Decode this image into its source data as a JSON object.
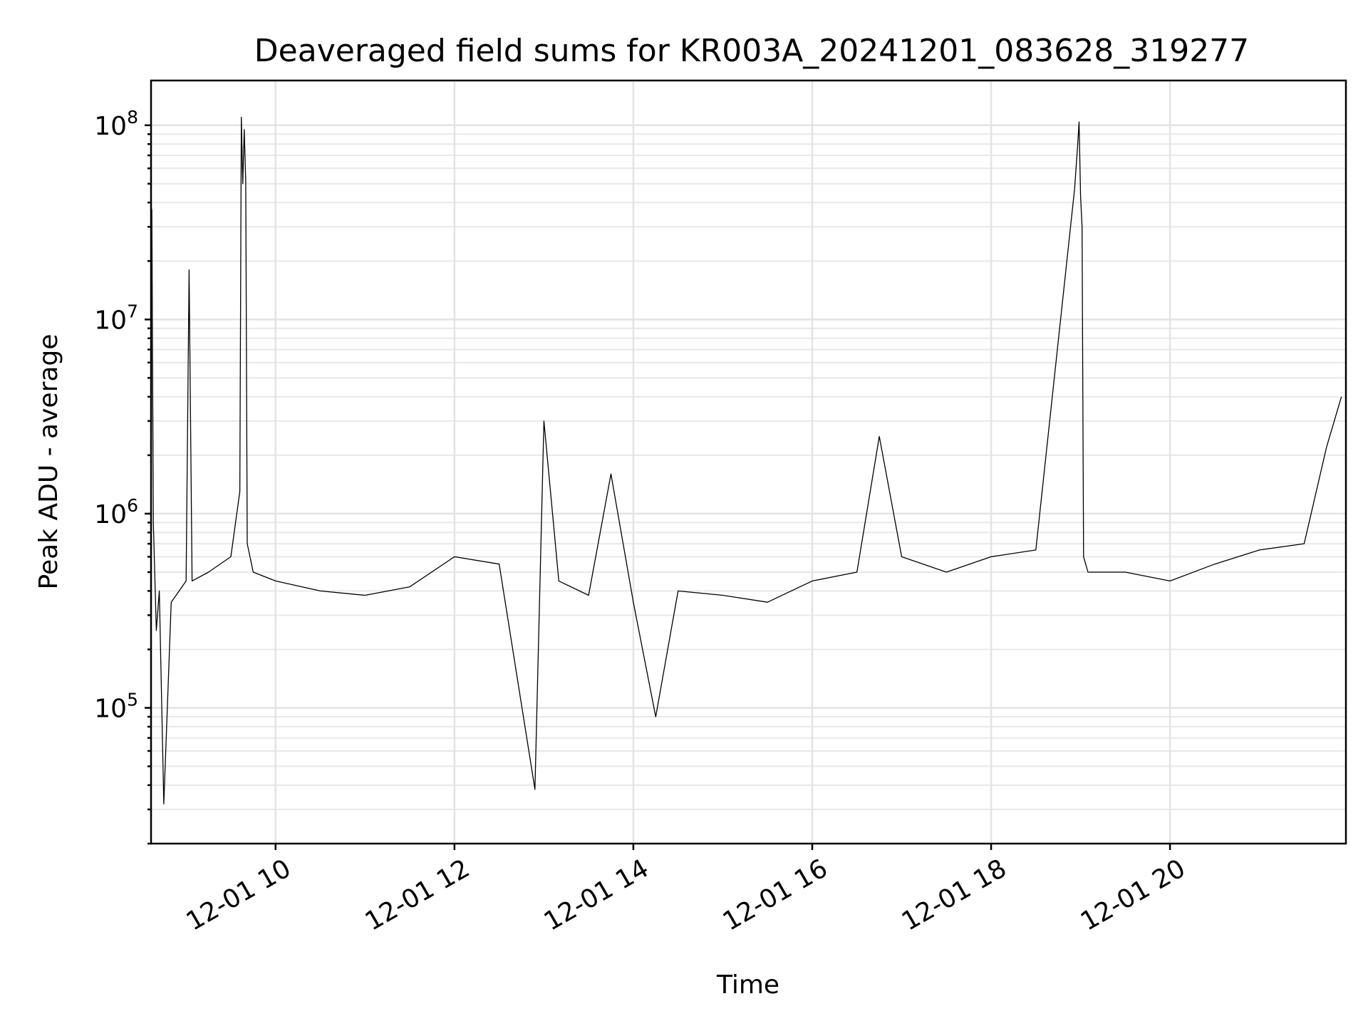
{
  "chart_data": {
    "type": "line",
    "title": "Deaveraged field sums for KR003A_20241201_083628_319277",
    "xlabel": "Time",
    "ylabel": "Peak ADU - average",
    "yscale": "log",
    "grid": true,
    "legend": "none",
    "line_color": "#000000",
    "xlim": [
      "2024-12-01 08:36:28",
      "2024-12-01 21:58:00"
    ],
    "ylim": [
      20000,
      170000000
    ],
    "x_ticks": [
      {
        "value": "2024-12-01 10:00",
        "label": "12-01 10"
      },
      {
        "value": "2024-12-01 12:00",
        "label": "12-01 12"
      },
      {
        "value": "2024-12-01 14:00",
        "label": "12-01 14"
      },
      {
        "value": "2024-12-01 16:00",
        "label": "12-01 16"
      },
      {
        "value": "2024-12-01 18:00",
        "label": "12-01 18"
      },
      {
        "value": "2024-12-01 20:00",
        "label": "12-01 20"
      }
    ],
    "y_ticks": [
      {
        "value": 100000,
        "base": "10",
        "exp": "5"
      },
      {
        "value": 1000000,
        "base": "10",
        "exp": "6"
      },
      {
        "value": 10000000,
        "base": "10",
        "exp": "7"
      },
      {
        "value": 100000000,
        "base": "10",
        "exp": "8"
      }
    ],
    "series": [
      {
        "x": [
          "2024-12-01 08:37",
          "2024-12-01 08:38",
          "2024-12-01 08:40",
          "2024-12-01 08:42",
          "2024-12-01 08:45",
          "2024-12-01 08:50",
          "2024-12-01 09:00",
          "2024-12-01 09:02",
          "2024-12-01 09:04",
          "2024-12-01 09:15",
          "2024-12-01 09:30",
          "2024-12-01 09:36",
          "2024-12-01 09:37",
          "2024-12-01 09:38",
          "2024-12-01 09:39",
          "2024-12-01 09:40",
          "2024-12-01 09:41",
          "2024-12-01 09:45",
          "2024-12-01 10:00",
          "2024-12-01 10:30",
          "2024-12-01 11:00",
          "2024-12-01 11:30",
          "2024-12-01 12:00",
          "2024-12-01 12:30",
          "2024-12-01 12:54",
          "2024-12-01 13:00",
          "2024-12-01 13:10",
          "2024-12-01 13:30",
          "2024-12-01 13:45",
          "2024-12-01 14:00",
          "2024-12-01 14:15",
          "2024-12-01 14:30",
          "2024-12-01 15:00",
          "2024-12-01 15:30",
          "2024-12-01 16:00",
          "2024-12-01 16:30",
          "2024-12-01 16:45",
          "2024-12-01 17:00",
          "2024-12-01 17:30",
          "2024-12-01 18:00",
          "2024-12-01 18:30",
          "2024-12-01 18:56",
          "2024-12-01 18:58",
          "2024-12-01 18:59",
          "2024-12-01 19:00",
          "2024-12-01 19:01",
          "2024-12-01 19:02",
          "2024-12-01 19:05",
          "2024-12-01 19:30",
          "2024-12-01 20:00",
          "2024-12-01 20:30",
          "2024-12-01 21:00",
          "2024-12-01 21:30",
          "2024-12-01 21:45",
          "2024-12-01 21:55"
        ],
        "y": [
          37000000,
          900000,
          250000,
          400000,
          32000,
          350000,
          450000,
          18000000,
          450000,
          500000,
          600000,
          1300000,
          110000000,
          50000000,
          95000000,
          51000000,
          700000,
          500000,
          450000,
          400000,
          380000,
          420000,
          600000,
          550000,
          38000,
          3000000,
          450000,
          380000,
          1600000,
          350000,
          90000,
          400000,
          380000,
          350000,
          450000,
          500000,
          2500000,
          600000,
          500000,
          600000,
          650000,
          47000000,
          78000000,
          104000000,
          43000000,
          30000000,
          600000,
          500000,
          500000,
          450000,
          550000,
          650000,
          700000,
          2200000,
          4000000
        ]
      }
    ]
  }
}
